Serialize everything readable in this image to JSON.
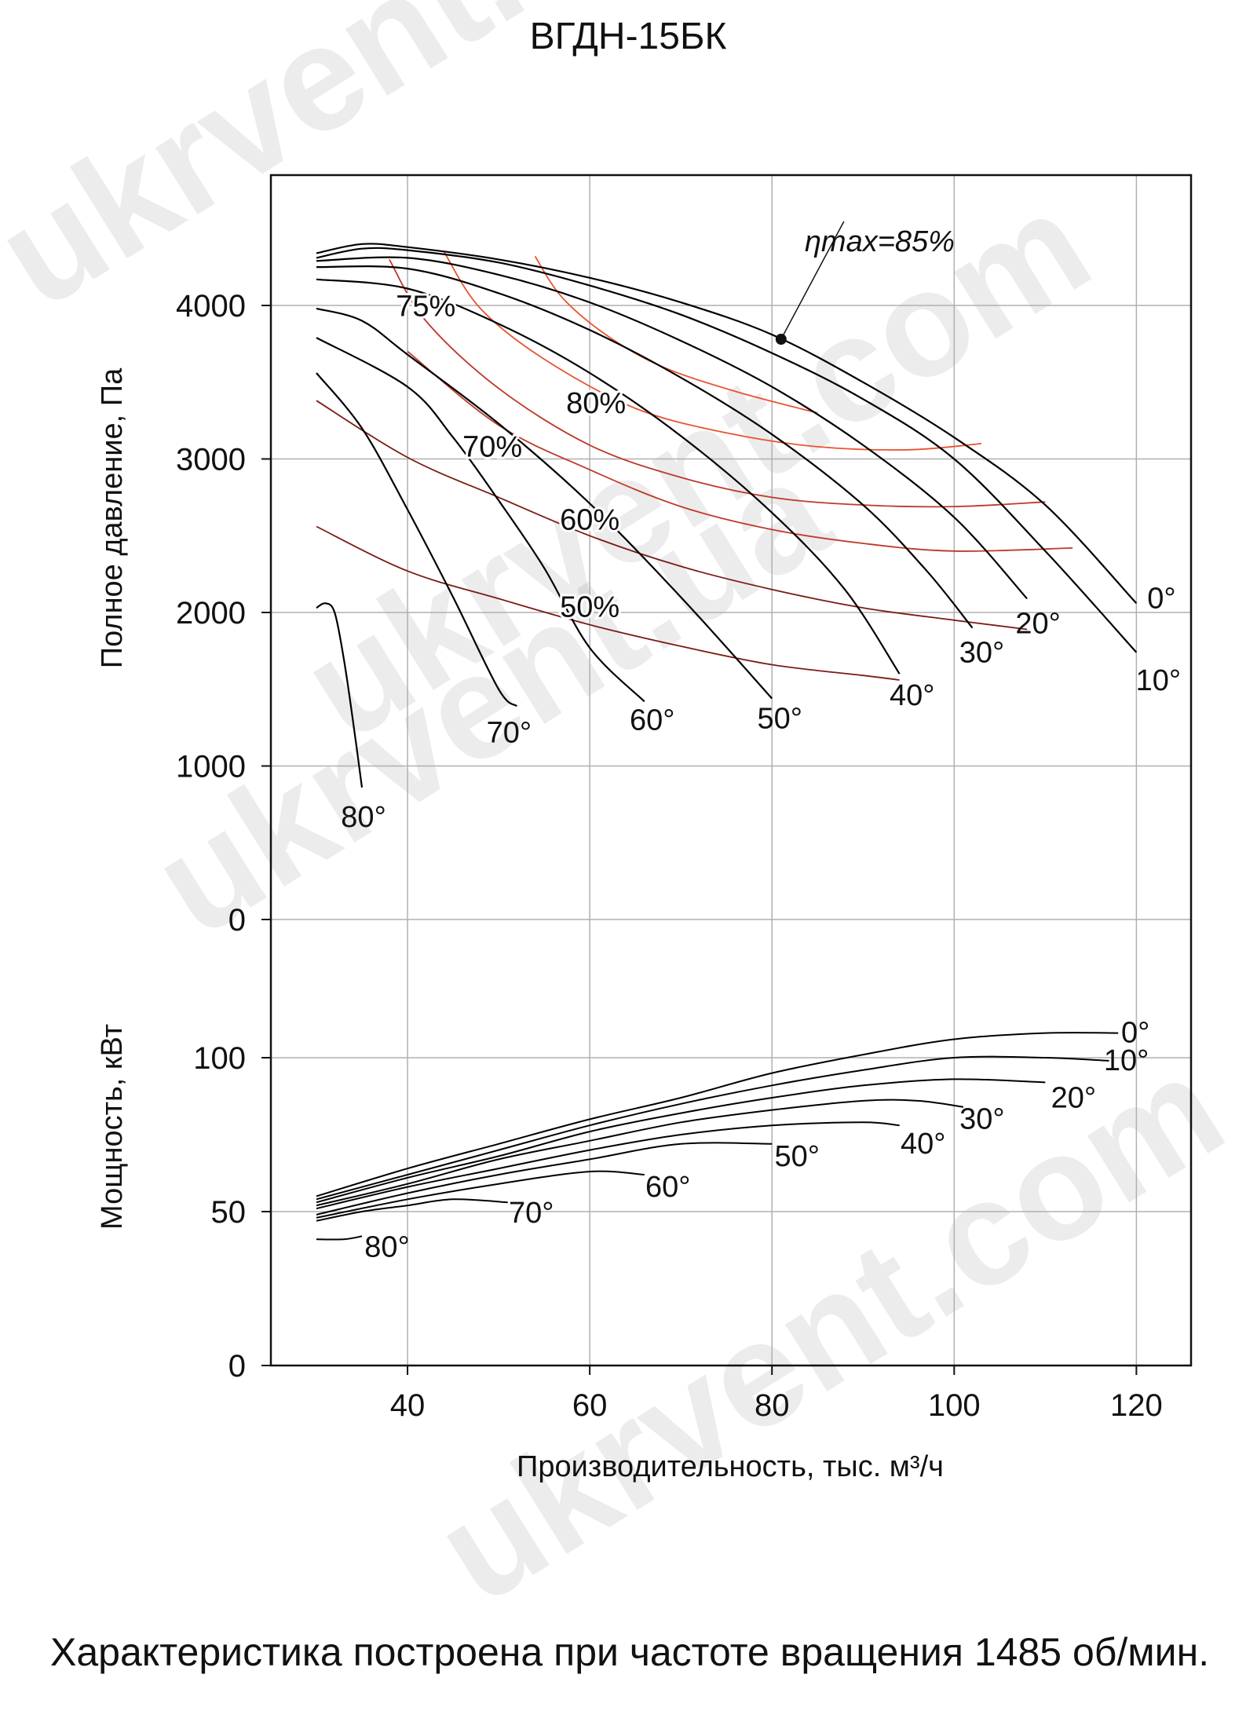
{
  "title": "ВГДН-15БК",
  "caption": "Характеристика построена при частоте вращения 1485 об/мин.",
  "watermark": "ukrvent.ua",
  "watermark2": "ukrvent.com",
  "colors": {
    "curve": "#000000",
    "efficiency_high": "#e8542f",
    "efficiency_mid": "#c0392b",
    "efficiency_low": "#7a1c14",
    "grid": "#b0b0b0"
  },
  "chart_data": [
    {
      "type": "line",
      "name": "pressure",
      "ylabel": "Полное давление, Па",
      "xlabel": "Производительность, тыс. м³/ч",
      "xlim": [
        25,
        126
      ],
      "ylim": [
        0,
        4800
      ],
      "xticks": [
        "40",
        "60",
        "80",
        "100",
        "120"
      ],
      "yticks": [
        "0",
        "1000",
        "2000",
        "3000",
        "4000"
      ],
      "grid": true,
      "annotation": {
        "text": "ηmax=85%",
        "point": [
          81,
          3780
        ]
      },
      "series": [
        {
          "name": "0°",
          "points": [
            [
              30,
              4340
            ],
            [
              35,
              4400
            ],
            [
              40,
              4380
            ],
            [
              50,
              4300
            ],
            [
              60,
              4180
            ],
            [
              70,
              4020
            ],
            [
              80,
              3810
            ],
            [
              90,
              3500
            ],
            [
              100,
              3140
            ],
            [
              110,
              2700
            ],
            [
              120,
              2060
            ]
          ]
        },
        {
          "name": "10°",
          "points": [
            [
              30,
              4310
            ],
            [
              35,
              4370
            ],
            [
              40,
              4360
            ],
            [
              50,
              4280
            ],
            [
              60,
              4130
            ],
            [
              70,
              3940
            ],
            [
              80,
              3690
            ],
            [
              90,
              3390
            ],
            [
              100,
              3000
            ],
            [
              110,
              2400
            ],
            [
              120,
              1740
            ]
          ]
        },
        {
          "name": "20°",
          "points": [
            [
              30,
              4290
            ],
            [
              40,
              4310
            ],
            [
              50,
              4200
            ],
            [
              60,
              4020
            ],
            [
              70,
              3770
            ],
            [
              80,
              3470
            ],
            [
              90,
              3090
            ],
            [
              100,
              2620
            ],
            [
              108,
              2090
            ]
          ]
        },
        {
          "name": "30°",
          "points": [
            [
              30,
              4250
            ],
            [
              40,
              4240
            ],
            [
              50,
              4080
            ],
            [
              60,
              3840
            ],
            [
              70,
              3530
            ],
            [
              80,
              3160
            ],
            [
              90,
              2700
            ],
            [
              97,
              2270
            ],
            [
              102,
              1900
            ]
          ]
        },
        {
          "name": "40°",
          "points": [
            [
              30,
              4170
            ],
            [
              40,
              4110
            ],
            [
              50,
              3880
            ],
            [
              60,
              3560
            ],
            [
              70,
              3150
            ],
            [
              80,
              2650
            ],
            [
              88,
              2150
            ],
            [
              94,
              1600
            ]
          ]
        },
        {
          "name": "50°",
          "points": [
            [
              30,
              3980
            ],
            [
              35,
              3900
            ],
            [
              40,
              3680
            ],
            [
              50,
              3230
            ],
            [
              60,
              2710
            ],
            [
              70,
              2100
            ],
            [
              80,
              1440
            ]
          ]
        },
        {
          "name": "60°",
          "points": [
            [
              30,
              3790
            ],
            [
              40,
              3470
            ],
            [
              45,
              3140
            ],
            [
              50,
              2730
            ],
            [
              55,
              2290
            ],
            [
              60,
              1770
            ],
            [
              66,
              1420
            ]
          ]
        },
        {
          "name": "70°",
          "points": [
            [
              30,
              3560
            ],
            [
              35,
              3200
            ],
            [
              40,
              2670
            ],
            [
              45,
              2100
            ],
            [
              50,
              1500
            ],
            [
              52,
              1390
            ]
          ]
        },
        {
          "name": "80°",
          "points": [
            [
              30,
              2030
            ],
            [
              31,
              2060
            ],
            [
              32,
              2000
            ],
            [
              33,
              1700
            ],
            [
              34,
              1300
            ],
            [
              35,
              860
            ]
          ]
        }
      ],
      "efficiency": [
        {
          "name": "50%",
          "points": [
            [
              30,
              2560
            ],
            [
              40,
              2270
            ],
            [
              50,
              2090
            ],
            [
              60,
              1920
            ],
            [
              70,
              1780
            ],
            [
              80,
              1660
            ],
            [
              90,
              1590
            ],
            [
              94,
              1560
            ]
          ]
        },
        {
          "name": "60%",
          "points": [
            [
              30,
              3380
            ],
            [
              40,
              3010
            ],
            [
              50,
              2750
            ],
            [
              60,
              2500
            ],
            [
              70,
              2300
            ],
            [
              80,
              2150
            ],
            [
              90,
              2030
            ],
            [
              100,
              1950
            ],
            [
              108,
              1890
            ]
          ]
        },
        {
          "name": "70%",
          "points": [
            [
              40,
              3700
            ],
            [
              50,
              3220
            ],
            [
              60,
              2930
            ],
            [
              70,
              2690
            ],
            [
              80,
              2540
            ],
            [
              90,
              2450
            ],
            [
              100,
              2400
            ],
            [
              113,
              2420
            ]
          ]
        },
        {
          "name": "75%",
          "points": [
            [
              38,
              4300
            ],
            [
              42,
              3900
            ],
            [
              50,
              3460
            ],
            [
              60,
              3090
            ],
            [
              70,
              2880
            ],
            [
              80,
              2750
            ],
            [
              90,
              2700
            ],
            [
              100,
              2690
            ],
            [
              110,
              2720
            ]
          ]
        },
        {
          "name": "80%",
          "points": [
            [
              44,
              4350
            ],
            [
              48,
              3980
            ],
            [
              55,
              3650
            ],
            [
              65,
              3330
            ],
            [
              75,
              3170
            ],
            [
              85,
              3080
            ],
            [
              95,
              3060
            ],
            [
              103,
              3100
            ]
          ]
        },
        {
          "name": "",
          "points": [
            [
              54,
              4320
            ],
            [
              57,
              4050
            ],
            [
              62,
              3800
            ],
            [
              68,
              3600
            ],
            [
              76,
              3440
            ],
            [
              85,
              3300
            ]
          ]
        }
      ]
    },
    {
      "type": "line",
      "name": "power",
      "ylabel": "Мощность, кВт",
      "xlabel": "Производительность, тыс. м³/ч",
      "xlim": [
        25,
        126
      ],
      "ylim": [
        0,
        150
      ],
      "yticks": [
        "0",
        "50",
        "100"
      ],
      "grid": true,
      "series": [
        {
          "name": "0°",
          "points": [
            [
              30,
              55
            ],
            [
              40,
              64
            ],
            [
              50,
              72
            ],
            [
              60,
              80
            ],
            [
              70,
              87
            ],
            [
              80,
              95
            ],
            [
              90,
              101
            ],
            [
              100,
              106
            ],
            [
              110,
              108
            ],
            [
              118,
              108
            ]
          ]
        },
        {
          "name": "10°",
          "points": [
            [
              30,
              54
            ],
            [
              40,
              62
            ],
            [
              50,
              70
            ],
            [
              60,
              78
            ],
            [
              70,
              85
            ],
            [
              80,
              91
            ],
            [
              90,
              96
            ],
            [
              100,
              100
            ],
            [
              110,
              100
            ],
            [
              117,
              99
            ]
          ]
        },
        {
          "name": "20°",
          "points": [
            [
              30,
              53
            ],
            [
              40,
              61
            ],
            [
              50,
              68
            ],
            [
              60,
              76
            ],
            [
              70,
              82
            ],
            [
              80,
              87
            ],
            [
              90,
              91
            ],
            [
              100,
              93
            ],
            [
              110,
              92
            ]
          ]
        },
        {
          "name": "30°",
          "points": [
            [
              30,
              52
            ],
            [
              40,
              59
            ],
            [
              50,
              67
            ],
            [
              60,
              73
            ],
            [
              70,
              79
            ],
            [
              80,
              83
            ],
            [
              90,
              86
            ],
            [
              96,
              86
            ],
            [
              101,
              84
            ]
          ]
        },
        {
          "name": "40°",
          "points": [
            [
              30,
              51
            ],
            [
              40,
              58
            ],
            [
              50,
              64
            ],
            [
              60,
              70
            ],
            [
              70,
              75
            ],
            [
              80,
              78
            ],
            [
              90,
              79
            ],
            [
              94,
              78
            ]
          ]
        },
        {
          "name": "50°",
          "points": [
            [
              30,
              49
            ],
            [
              40,
              56
            ],
            [
              50,
              62
            ],
            [
              60,
              67
            ],
            [
              70,
              72
            ],
            [
              80,
              72
            ]
          ]
        },
        {
          "name": "60°",
          "points": [
            [
              30,
              48
            ],
            [
              40,
              54
            ],
            [
              50,
              59
            ],
            [
              60,
              63
            ],
            [
              66,
              62
            ]
          ]
        },
        {
          "name": "70°",
          "points": [
            [
              30,
              47
            ],
            [
              35,
              50
            ],
            [
              40,
              52
            ],
            [
              45,
              54
            ],
            [
              51,
              53
            ]
          ]
        },
        {
          "name": "80°",
          "points": [
            [
              30,
              41
            ],
            [
              33,
              41
            ],
            [
              35,
              42
            ]
          ]
        }
      ]
    }
  ]
}
